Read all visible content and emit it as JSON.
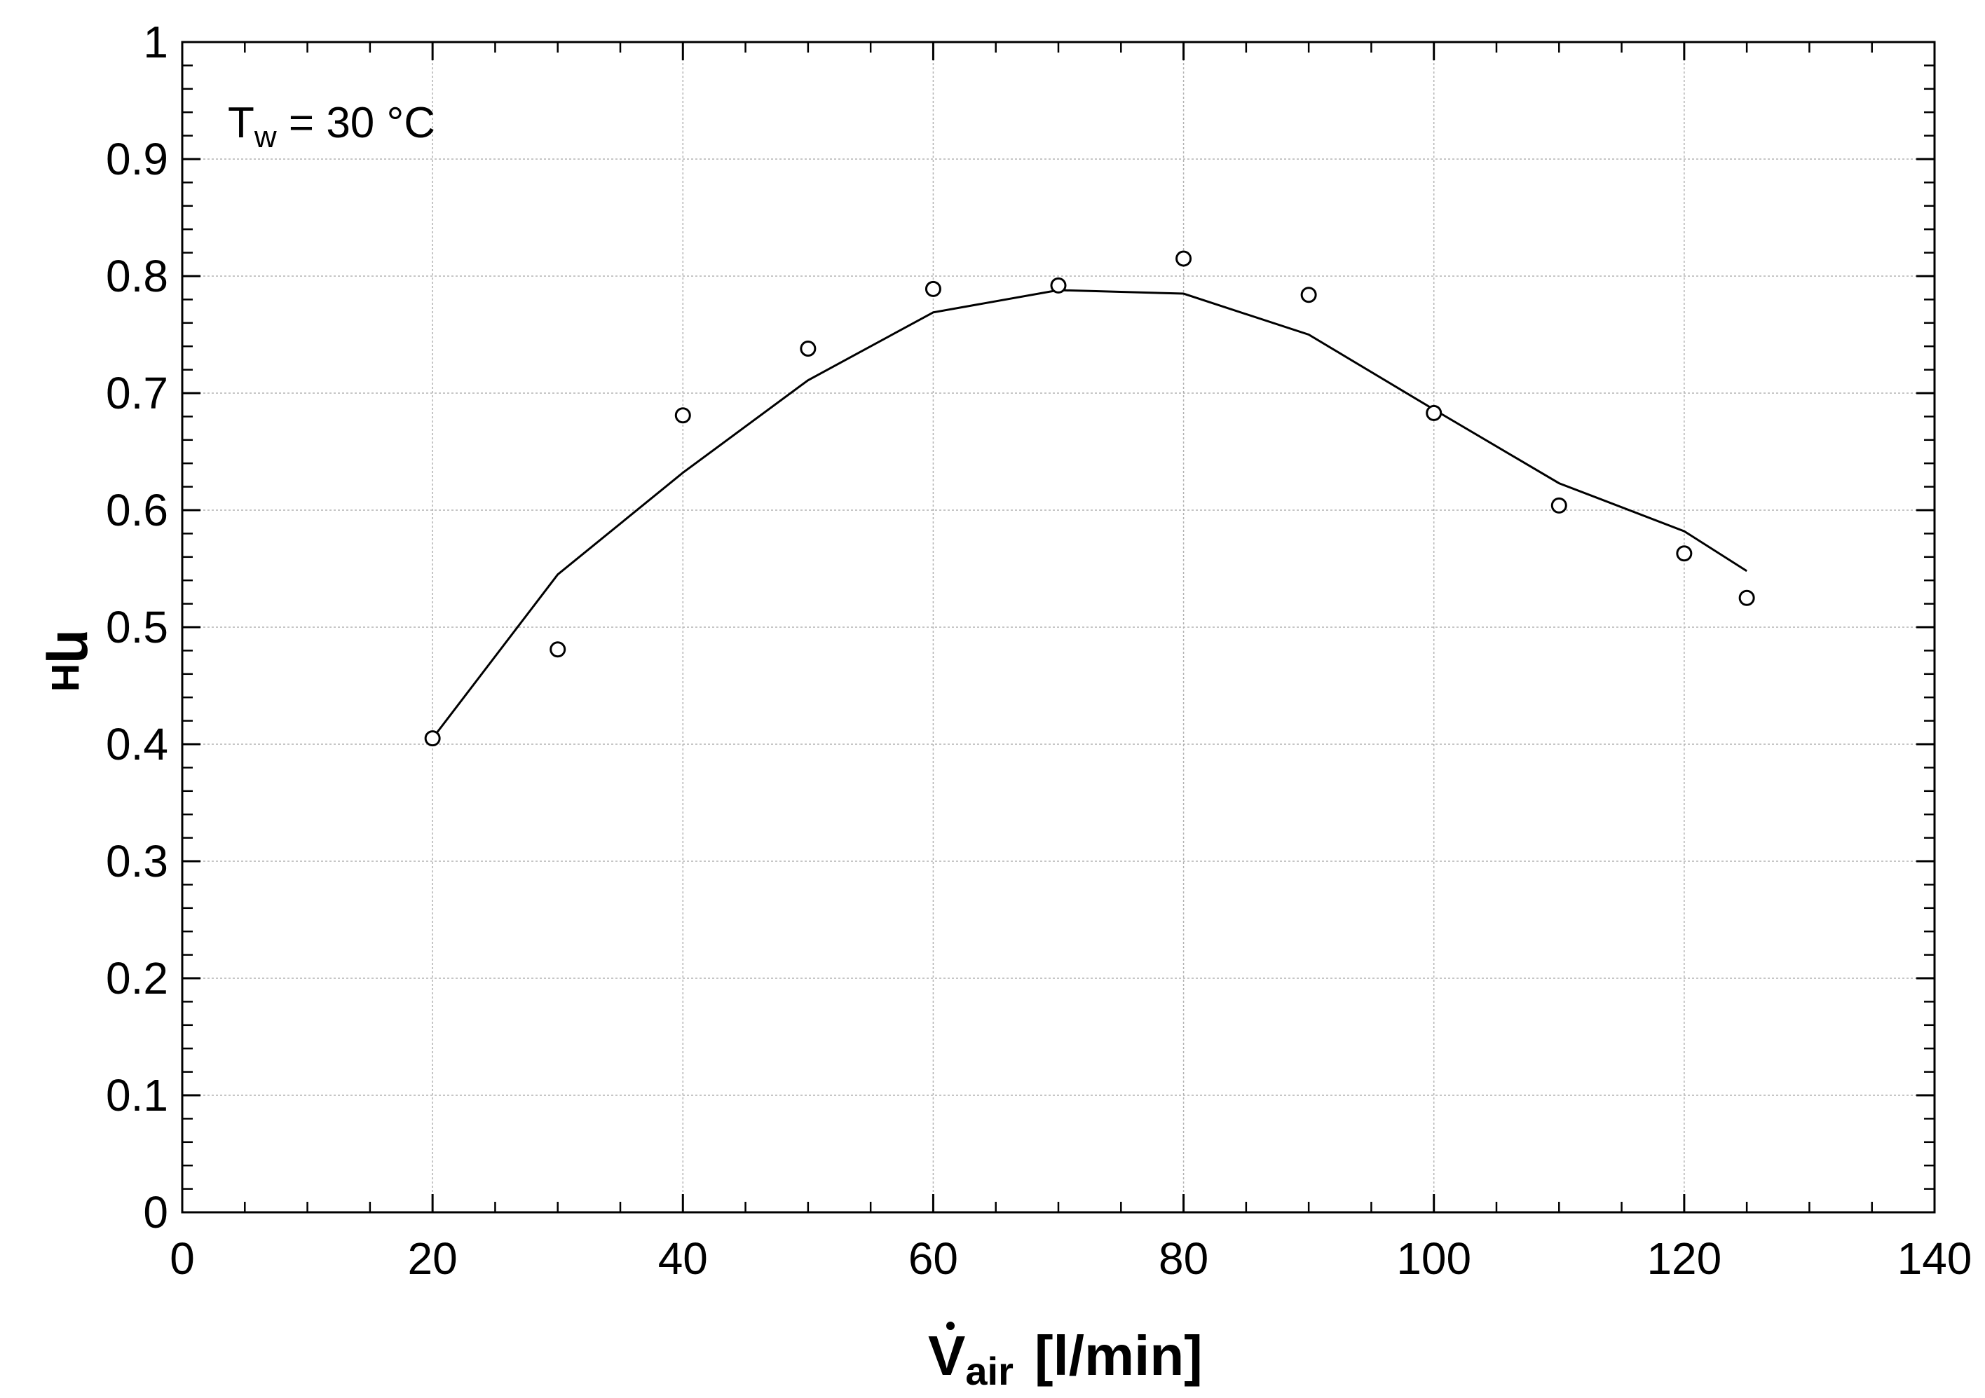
{
  "chart_data": {
    "type": "scatter",
    "xlim": [
      0,
      140
    ],
    "ylim": [
      0,
      1
    ],
    "x_ticks": [
      "0",
      "20",
      "40",
      "60",
      "80",
      "100",
      "120",
      "140"
    ],
    "y_ticks": [
      "0",
      "0.1",
      "0.2",
      "0.3",
      "0.4",
      "0.5",
      "0.6",
      "0.7",
      "0.8",
      "0.9",
      "1"
    ],
    "grid": true,
    "xlabel": {
      "symbol": "V",
      "subscript": "air",
      "unit": "[l/min]"
    },
    "ylabel": {
      "symbol": "η",
      "subscript": "H"
    },
    "annotation": {
      "symbol": "T",
      "subscript": "w",
      "text": " = 30 °C"
    },
    "series": [
      {
        "style": "markers",
        "marker": "circle-open",
        "x": [
          20,
          30,
          40,
          50,
          60,
          70,
          80,
          90,
          100,
          110,
          120,
          125
        ],
        "y": [
          0.405,
          0.481,
          0.681,
          0.738,
          0.789,
          0.792,
          0.815,
          0.784,
          0.683,
          0.604,
          0.563,
          0.525
        ]
      },
      {
        "style": "line",
        "x": [
          20,
          30,
          40,
          50,
          60,
          70,
          80,
          90,
          100,
          110,
          120,
          125
        ],
        "y": [
          0.405,
          0.545,
          0.632,
          0.711,
          0.769,
          0.788,
          0.785,
          0.75,
          0.686,
          0.623,
          0.582,
          0.548
        ]
      }
    ]
  }
}
